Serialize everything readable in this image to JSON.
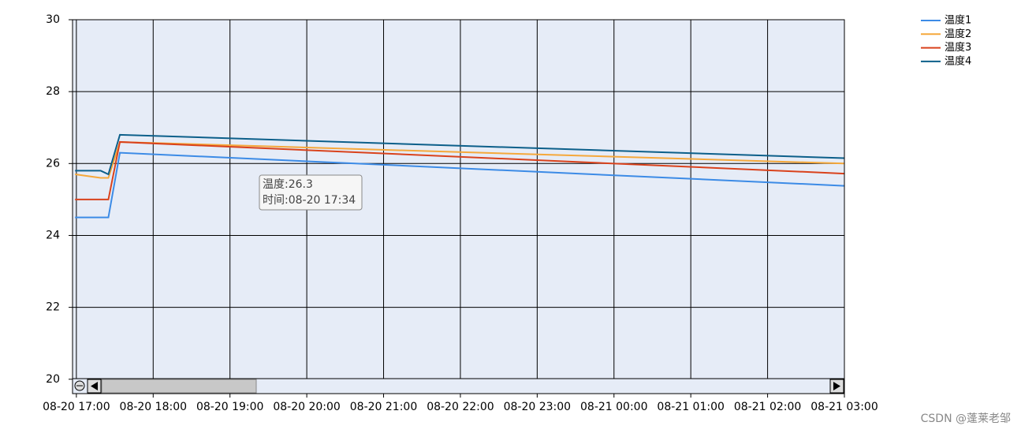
{
  "chart_data": {
    "type": "line",
    "x": [
      "08-20 16:59",
      "08-20 17:19",
      "08-20 17:25",
      "08-20 17:34",
      "08-21 03:00"
    ],
    "series": [
      {
        "name": "温度1",
        "color": "#3c8be6",
        "values": [
          24.5,
          24.5,
          24.5,
          26.3,
          25.38
        ]
      },
      {
        "name": "温度2",
        "color": "#f5a83b",
        "values": [
          25.7,
          25.6,
          25.6,
          26.6,
          26.0
        ]
      },
      {
        "name": "温度3",
        "color": "#d9421c",
        "values": [
          25.0,
          25.0,
          25.0,
          26.6,
          25.72
        ]
      },
      {
        "name": "温度4",
        "color": "#0c5f8a",
        "values": [
          25.8,
          25.8,
          25.7,
          26.8,
          26.15
        ]
      }
    ],
    "xlim": [
      "08-20 16:57",
      "08-21 03:00"
    ],
    "xticks": [
      "08-20 17:00",
      "08-20 18:00",
      "08-20 19:00",
      "08-20 20:00",
      "08-20 21:00",
      "08-20 22:00",
      "08-20 23:00",
      "08-21 00:00",
      "08-21 01:00",
      "08-21 02:00",
      "08-21 03:00"
    ],
    "ylim": [
      19.6,
      30
    ],
    "yticks": [
      20,
      22,
      24,
      26,
      28,
      30
    ],
    "grid": true,
    "legend": "top-right",
    "tooltip": {
      "lines": [
        "温度:26.3",
        "时间:08-20 17:34"
      ]
    }
  },
  "watermark": "CSDN @蓬莱老邹"
}
